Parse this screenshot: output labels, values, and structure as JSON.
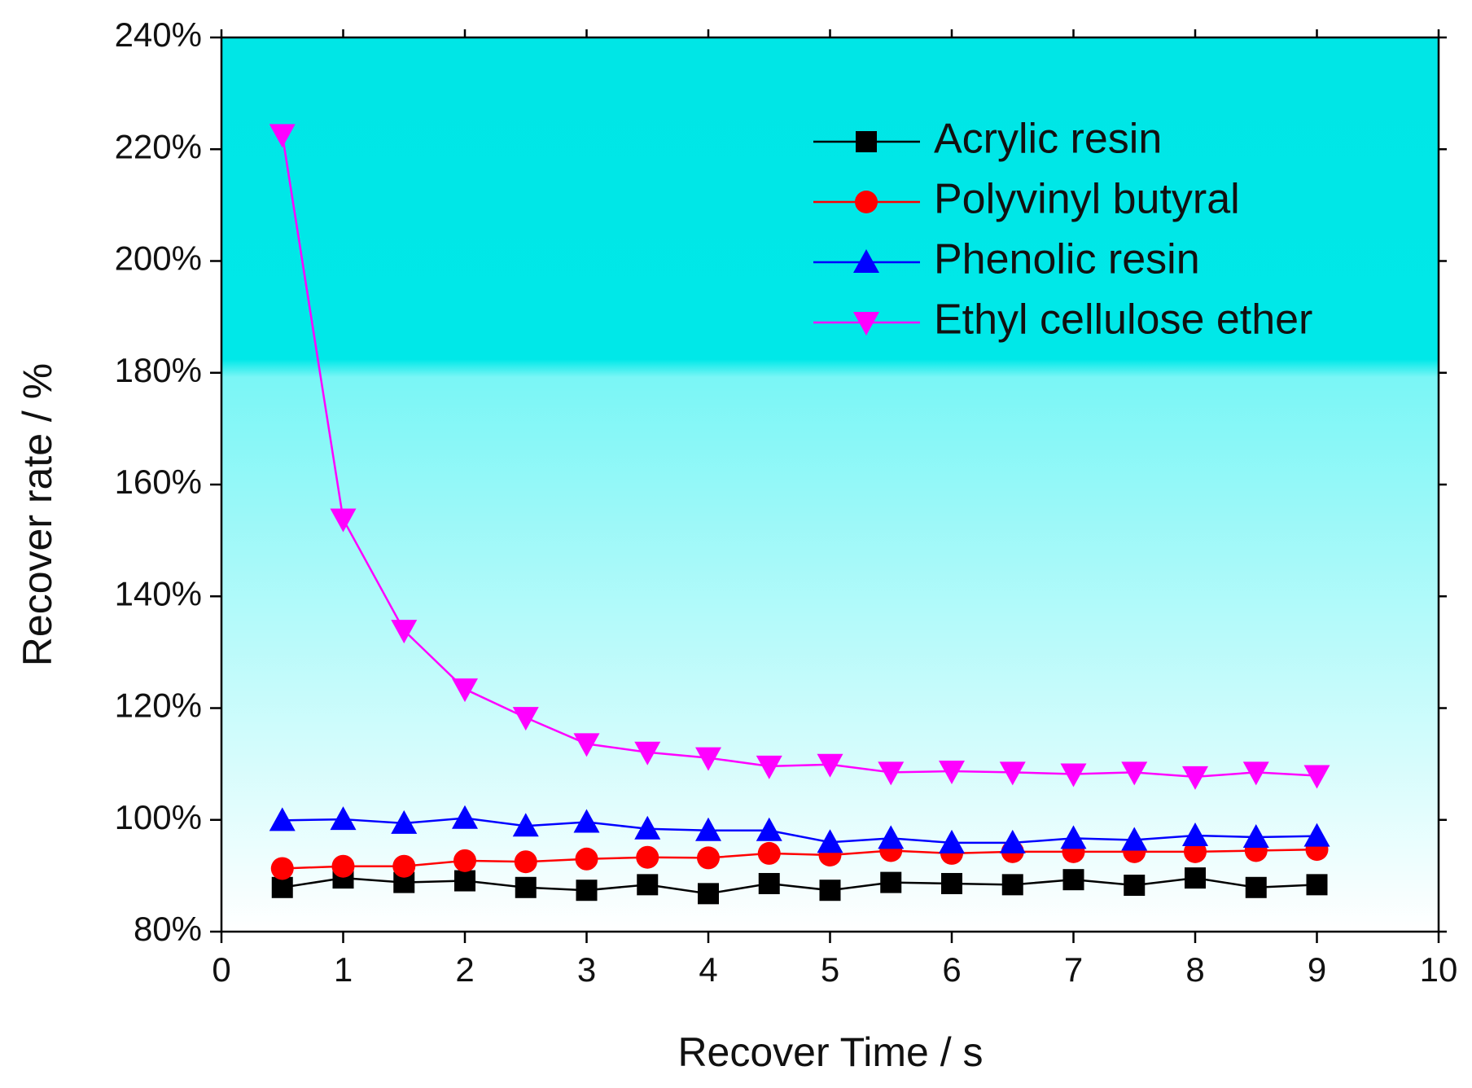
{
  "chart_data": {
    "type": "line",
    "x_label": "Recover Time / s",
    "y_label": "Recover rate / %",
    "x": [
      0.5,
      1,
      1.5,
      2,
      2.5,
      3,
      3.5,
      4,
      4.5,
      5,
      5.5,
      6,
      6.5,
      7,
      7.5,
      8,
      8.5,
      9
    ],
    "series": [
      {
        "name": "Acrylic resin",
        "color": "#000000",
        "marker": "square",
        "values": [
          87.9,
          89.6,
          88.8,
          89.1,
          87.9,
          87.4,
          88.4,
          86.8,
          88.6,
          87.4,
          88.8,
          88.6,
          88.4,
          89.3,
          88.3,
          89.6,
          87.9,
          88.4
        ]
      },
      {
        "name": "Polyvinyl butyral",
        "color": "#ff0000",
        "marker": "circle",
        "values": [
          91.3,
          91.7,
          91.7,
          92.7,
          92.5,
          93.0,
          93.3,
          93.2,
          94.0,
          93.7,
          94.5,
          94.0,
          94.3,
          94.3,
          94.3,
          94.3,
          94.5,
          94.7
        ]
      },
      {
        "name": "Phenolic resin",
        "color": "#0000ff",
        "marker": "triangle-up",
        "values": [
          99.9,
          100.1,
          99.4,
          100.3,
          98.9,
          99.6,
          98.4,
          98.1,
          98.1,
          96.0,
          96.7,
          95.9,
          95.9,
          96.7,
          96.4,
          97.2,
          96.9,
          97.1
        ]
      },
      {
        "name": "Ethyl cellulose ether",
        "color": "#ff00ff",
        "marker": "triangle-down",
        "values": [
          222.6,
          153.8,
          133.9,
          123.4,
          118.3,
          113.6,
          112.1,
          111.1,
          109.6,
          109.9,
          108.5,
          108.7,
          108.5,
          108.2,
          108.5,
          107.7,
          108.5,
          107.9
        ]
      }
    ],
    "xlim": [
      0,
      10
    ],
    "xticks": [
      0,
      1,
      2,
      3,
      4,
      5,
      6,
      7,
      8,
      9,
      10
    ],
    "ylim": [
      80,
      240
    ],
    "yticks": [
      {
        "value": 80,
        "label": "80%"
      },
      {
        "value": 100,
        "label": "100%"
      },
      {
        "value": 120,
        "label": "120%"
      },
      {
        "value": 140,
        "label": "140%"
      },
      {
        "value": 160,
        "label": "160%"
      },
      {
        "value": 180,
        "label": "180%"
      },
      {
        "value": 200,
        "label": "200%"
      },
      {
        "value": 220,
        "label": "220%"
      },
      {
        "value": 240,
        "label": "240%"
      }
    ],
    "legend": "upper right",
    "grid": false
  }
}
